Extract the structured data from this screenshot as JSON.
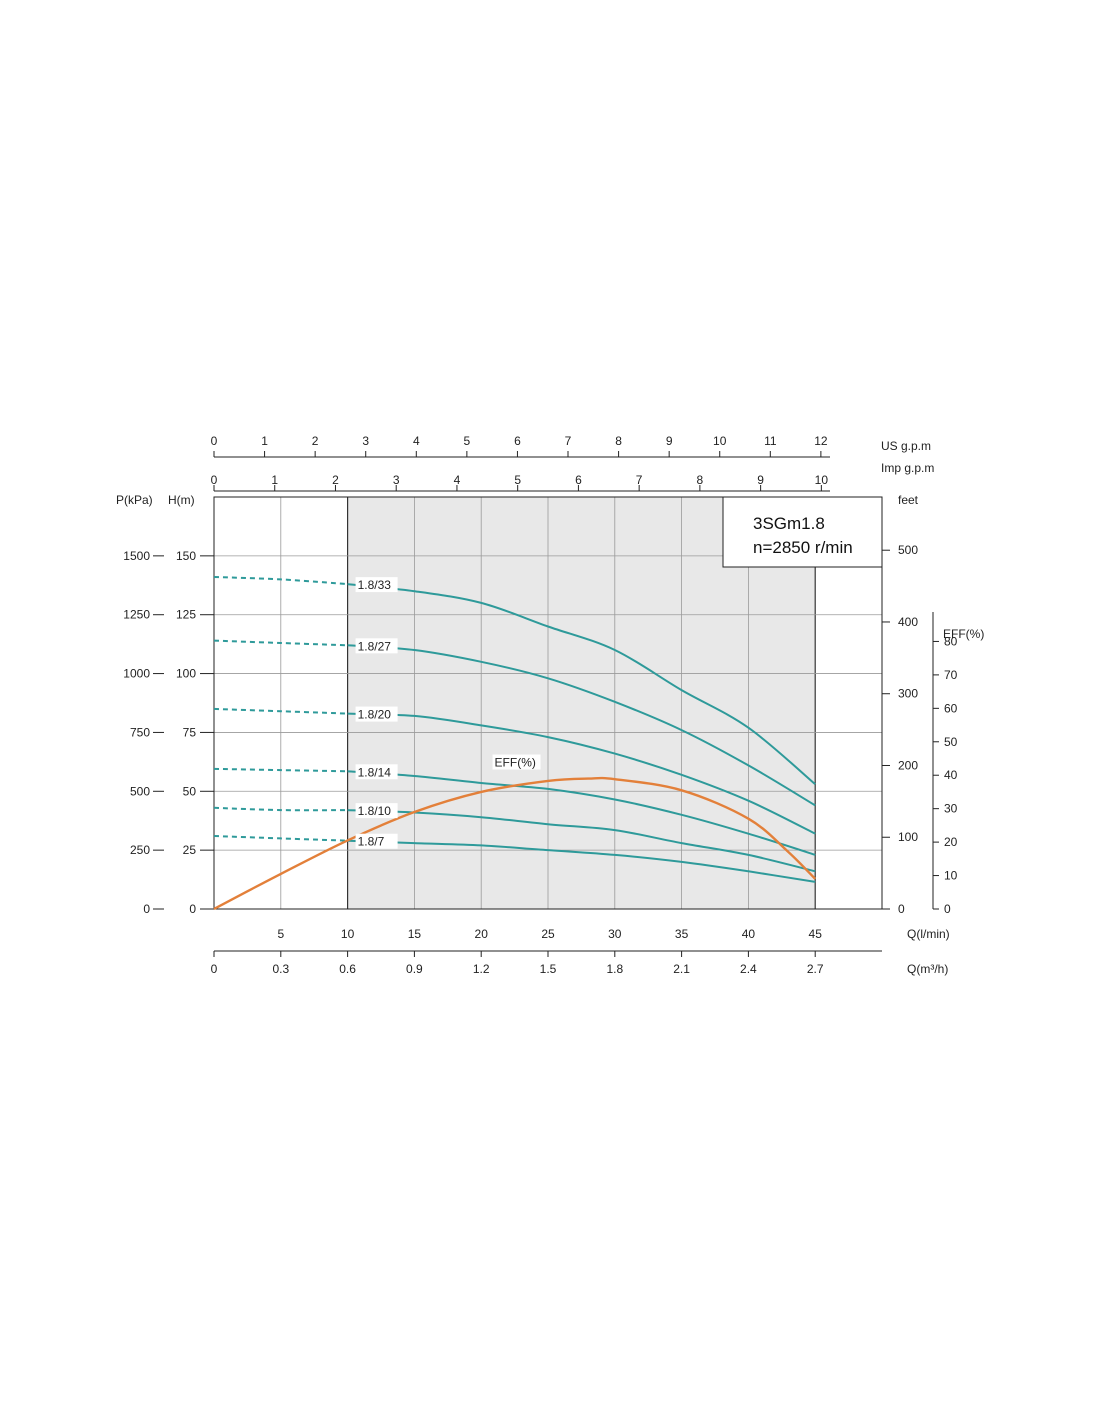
{
  "chart_data": {
    "type": "line",
    "model": "3SGm1.8",
    "speed": "n=2850 r/min",
    "x_axis": {
      "label": "Q(l/min)",
      "range": [
        0,
        50
      ],
      "ticks": [
        5,
        10,
        15,
        20,
        25,
        30,
        35,
        40,
        45
      ]
    },
    "x_axis_m3h": {
      "label": "Q(m³/h)",
      "ticks": [
        "0",
        "0.3",
        "0.6",
        "0.9",
        "1.2",
        "1.5",
        "1.8",
        "2.1",
        "2.4",
        "2.7"
      ]
    },
    "top_axis_us": {
      "label": "US  g.p.m",
      "ticks": [
        "0",
        "1",
        "2",
        "3",
        "4",
        "5",
        "6",
        "7",
        "8",
        "9",
        "10",
        "11",
        "12"
      ]
    },
    "top_axis_imp": {
      "label": "Imp  g.p.m",
      "ticks": [
        "0",
        "1",
        "2",
        "3",
        "4",
        "5",
        "6",
        "7",
        "8",
        "9",
        "10"
      ]
    },
    "y_axis_head": {
      "label": "H(m)",
      "range": [
        0,
        175
      ],
      "ticks": [
        "0",
        "25",
        "50",
        "75",
        "100",
        "125",
        "150"
      ]
    },
    "y_axis_pressure": {
      "label": "P(kPa)",
      "ticks": [
        "0",
        "250",
        "500",
        "750",
        "1000",
        "1250",
        "1500"
      ]
    },
    "y_axis_feet": {
      "label": "feet",
      "ticks": [
        "0",
        "100",
        "200",
        "300",
        "400",
        "500"
      ]
    },
    "y_axis_eff": {
      "label": "EFF(%)",
      "ticks": [
        "0",
        "10",
        "20",
        "30",
        "40",
        "50",
        "60",
        "70",
        "80"
      ]
    },
    "operating_range": [
      10,
      45
    ],
    "series": [
      {
        "name": "1.8/33",
        "label_q": 10,
        "dashed": [
          [
            0,
            141
          ],
          [
            5,
            140
          ],
          [
            10,
            138
          ]
        ],
        "solid": [
          [
            10,
            138
          ],
          [
            15,
            135
          ],
          [
            20,
            130
          ],
          [
            25,
            120
          ],
          [
            30,
            110
          ],
          [
            35,
            93
          ],
          [
            40,
            77
          ],
          [
            45,
            53
          ]
        ]
      },
      {
        "name": "1.8/27",
        "label_q": 10,
        "dashed": [
          [
            0,
            114
          ],
          [
            5,
            113
          ],
          [
            10,
            112
          ]
        ],
        "solid": [
          [
            10,
            112
          ],
          [
            15,
            110
          ],
          [
            20,
            105
          ],
          [
            25,
            98
          ],
          [
            30,
            88
          ],
          [
            35,
            76
          ],
          [
            40,
            61
          ],
          [
            45,
            44
          ]
        ]
      },
      {
        "name": "1.8/20",
        "label_q": 10,
        "dashed": [
          [
            0,
            85
          ],
          [
            5,
            84
          ],
          [
            10,
            83
          ]
        ],
        "solid": [
          [
            10,
            83
          ],
          [
            15,
            82
          ],
          [
            20,
            78
          ],
          [
            25,
            73
          ],
          [
            30,
            66
          ],
          [
            35,
            57
          ],
          [
            40,
            46
          ],
          [
            45,
            32
          ]
        ]
      },
      {
        "name": "1.8/14",
        "label_q": 10,
        "dashed": [
          [
            0,
            59.5
          ],
          [
            5,
            59
          ],
          [
            10,
            58.5
          ]
        ],
        "solid": [
          [
            10,
            58.5
          ],
          [
            15,
            56.5
          ],
          [
            20,
            53.5
          ],
          [
            25,
            51
          ],
          [
            30,
            46.5
          ],
          [
            35,
            40
          ],
          [
            40,
            32
          ],
          [
            45,
            23
          ]
        ]
      },
      {
        "name": "1.8/10",
        "label_q": 10,
        "dashed": [
          [
            0,
            43
          ],
          [
            5,
            42
          ],
          [
            10,
            42
          ]
        ],
        "solid": [
          [
            10,
            42
          ],
          [
            15,
            41
          ],
          [
            20,
            39
          ],
          [
            25,
            36
          ],
          [
            30,
            33.5
          ],
          [
            35,
            28
          ],
          [
            40,
            23
          ],
          [
            45,
            16
          ]
        ]
      },
      {
        "name": "1.8/7",
        "label_q": 10,
        "dashed": [
          [
            0,
            31
          ],
          [
            5,
            30
          ],
          [
            10,
            29
          ]
        ],
        "solid": [
          [
            10,
            29
          ],
          [
            15,
            28
          ],
          [
            20,
            27
          ],
          [
            25,
            25
          ],
          [
            30,
            23
          ],
          [
            35,
            20
          ],
          [
            40,
            16
          ],
          [
            45,
            11.5
          ]
        ]
      }
    ],
    "efficiency": {
      "name": "EFF(%)",
      "points": [
        [
          0,
          0
        ],
        [
          5,
          10.5
        ],
        [
          10,
          20.5
        ],
        [
          15,
          29
        ],
        [
          20,
          35
        ],
        [
          25,
          38.3
        ],
        [
          28,
          39
        ],
        [
          30,
          38.8
        ],
        [
          35,
          35.5
        ],
        [
          40,
          27
        ],
        [
          43,
          17
        ],
        [
          45,
          9
        ]
      ]
    },
    "colors": {
      "head": "#2e9a9a",
      "eff": "#e3803a",
      "range_fill": "#e8e8e8",
      "grid": "#9a9a9a"
    }
  }
}
